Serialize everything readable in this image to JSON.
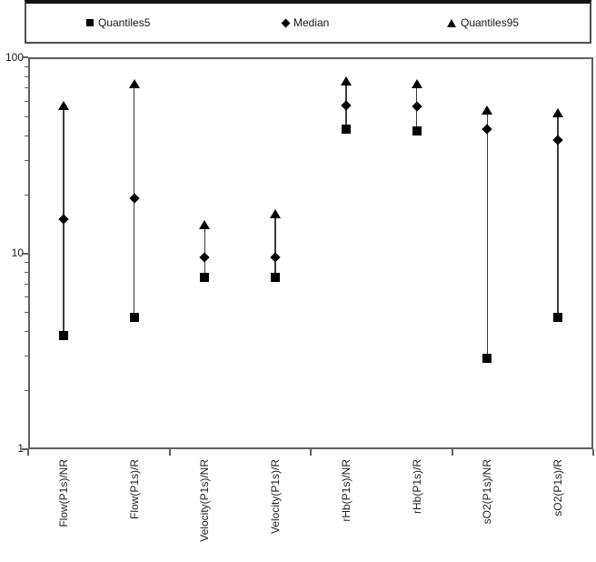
{
  "legend": {
    "items": [
      {
        "label": "Quantiles5",
        "marker": "square"
      },
      {
        "label": "Median",
        "marker": "diamond"
      },
      {
        "label": "Quantiles95",
        "marker": "triangle"
      }
    ]
  },
  "chart_data": {
    "type": "scatter",
    "title": "",
    "subtitle": "",
    "y_scale": "log",
    "ylim": [
      1,
      100
    ],
    "y_tick_labels": [
      "1",
      "10",
      "100"
    ],
    "y_minor_ticks": [
      2,
      3,
      4,
      5,
      6,
      7,
      8,
      9,
      20,
      30,
      40,
      50,
      60,
      70,
      80,
      90
    ],
    "grid": false,
    "legend_position": "top",
    "categories": [
      "Flow(P1s)/NR",
      "Flow(P1s)/R",
      "Velocity(P1s)/NR",
      "Velocity(P1s)/R",
      "rHb(P1s)/NR",
      "rHb(P1s)/R",
      "sO2(P1s)/NR",
      "sO2(P1s)/R"
    ],
    "series": [
      {
        "name": "Quantiles5",
        "marker": "square",
        "values": [
          3.8,
          4.7,
          7.5,
          7.5,
          43,
          42,
          2.9,
          4.7
        ]
      },
      {
        "name": "Median",
        "marker": "diamond",
        "values": [
          15,
          19,
          9.5,
          9.5,
          57,
          56,
          43,
          38
        ]
      },
      {
        "name": "Quantiles95",
        "marker": "triangle",
        "values": [
          57,
          73,
          14,
          16,
          76,
          73,
          54,
          52
        ]
      }
    ]
  }
}
